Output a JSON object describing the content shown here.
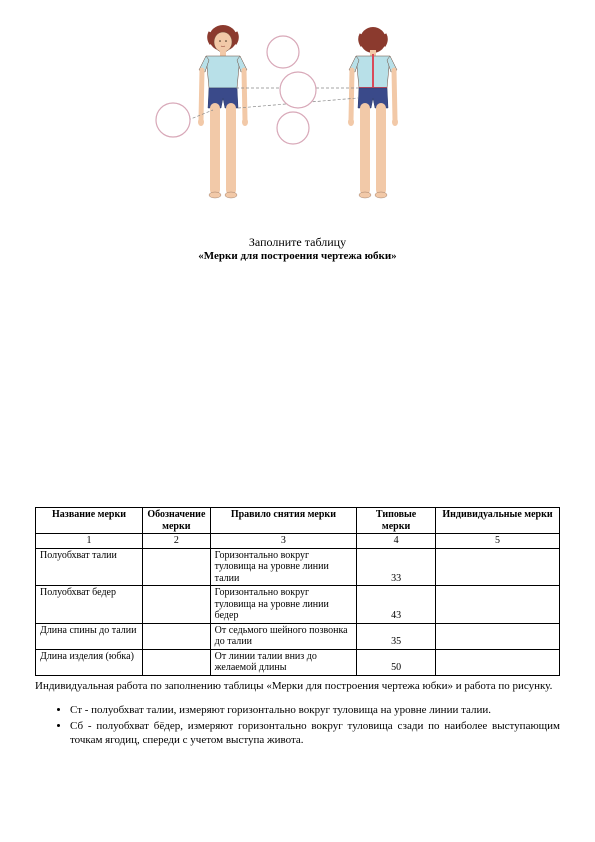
{
  "figure": {
    "skin": "#f2c9a8",
    "hair": "#8b3a2e",
    "shirt": "#b8e0e8",
    "shorts": "#3a4a8a",
    "outline": "#6b4a3a",
    "circle_stroke": "#d8a8b8",
    "tape": "#d94a5a",
    "dash_line": "#888888"
  },
  "titles": {
    "line1": "Заполните таблицу",
    "line2": "«Мерки для построения чертежа юбки»"
  },
  "table": {
    "headers": [
      "Название мерки",
      "Обозначение мерки",
      "Правило снятия мерки",
      "Типовые мерки",
      "Индивидуальные мерки"
    ],
    "numrow": [
      "1",
      "2",
      "3",
      "4",
      "5"
    ],
    "rows": [
      {
        "name": "Полуобхват талии",
        "sym": "",
        "rule": "Горизонтально вокруг туловища на уровне линии талии",
        "typ": "33",
        "ind": ""
      },
      {
        "name": "Полуобхват бедер",
        "sym": "",
        "rule": "Горизонтально вокруг туловища на уровне линии бедер",
        "typ": "43",
        "ind": ""
      },
      {
        "name": "Длина спины до талии",
        "sym": "",
        "rule": "От седьмого шейного позвонка до талии",
        "typ": "35",
        "ind": ""
      },
      {
        "name": "Длина изделия (юбка)",
        "sym": "",
        "rule": "От линии талии вниз до желаемой длины",
        "typ": "50",
        "ind": ""
      }
    ]
  },
  "para": "Индивидуальная работа по заполнению таблицы «Мерки для построения чертежа юбки» и работа по рисунку.",
  "bullets": [
    "Ст - полуобхват талии, измеряют горизонтально вокруг туловища на уровне линии талии.",
    "Сб - полуобхват бёдер, измеряют горизонтально вокруг туловища сзади по наиболее выступающим точкам ягодиц, спереди с учетом выступа живота."
  ]
}
